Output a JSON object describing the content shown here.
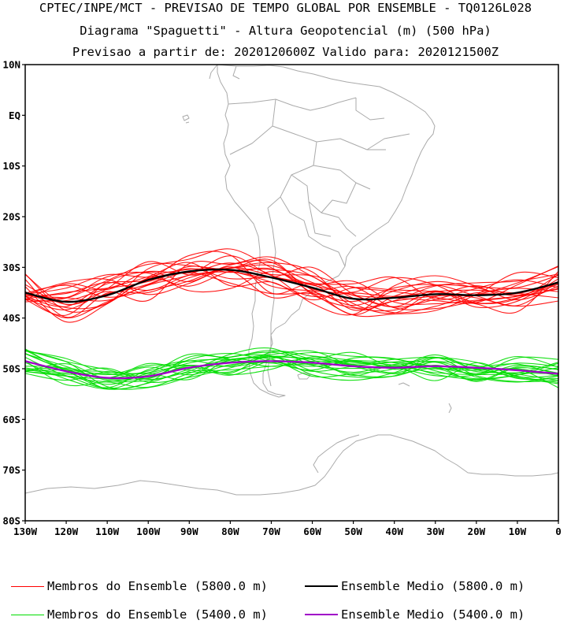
{
  "header": {
    "line1": "CPTEC/INPE/MCT - PREVISAO DE TEMPO GLOBAL POR ENSEMBLE - TQ0126L028",
    "line2": "Diagrama \"Spaguetti\" - Altura Geopotencial (m) (500 hPa)",
    "line3": "Previsao a partir de: 2020120600Z  Valido para: 2020121500Z"
  },
  "map": {
    "lon_range": [
      -130,
      0
    ],
    "lat_range": [
      -80,
      10
    ],
    "lat_ticks": [
      {
        "value": 10,
        "label": "10N"
      },
      {
        "value": 0,
        "label": "EQ"
      },
      {
        "value": -10,
        "label": "10S"
      },
      {
        "value": -20,
        "label": "20S"
      },
      {
        "value": -30,
        "label": "30S"
      },
      {
        "value": -40,
        "label": "40S"
      },
      {
        "value": -50,
        "label": "50S"
      },
      {
        "value": -60,
        "label": "60S"
      },
      {
        "value": -70,
        "label": "70S"
      },
      {
        "value": -80,
        "label": "80S"
      }
    ],
    "lon_ticks": [
      {
        "value": -130,
        "label": "130W"
      },
      {
        "value": -120,
        "label": "120W"
      },
      {
        "value": -110,
        "label": "110W"
      },
      {
        "value": -100,
        "label": "100W"
      },
      {
        "value": -90,
        "label": "90W"
      },
      {
        "value": -80,
        "label": "80W"
      },
      {
        "value": -70,
        "label": "70W"
      },
      {
        "value": -60,
        "label": "60W"
      },
      {
        "value": -50,
        "label": "50W"
      },
      {
        "value": -40,
        "label": "40W"
      },
      {
        "value": -30,
        "label": "30W"
      },
      {
        "value": -20,
        "label": "20W"
      },
      {
        "value": -10,
        "label": "10W"
      },
      {
        "value": 0,
        "label": "0"
      }
    ],
    "coast_color": "#aaaaaa"
  },
  "contours": {
    "lon": [
      -130,
      -120,
      -110,
      -100,
      -90,
      -80,
      -70,
      -60,
      -50,
      -40,
      -30,
      -20,
      -10,
      0
    ],
    "mean_5800": [
      -35.0,
      -36.8,
      -35.5,
      -32.5,
      -30.8,
      -30.5,
      -32.0,
      -34.0,
      -36.2,
      -36.0,
      -35.3,
      -35.5,
      -35.0,
      -33.0
    ],
    "mean_5400": [
      -48.5,
      -50.5,
      -51.8,
      -51.5,
      -49.8,
      -48.8,
      -48.5,
      -48.8,
      -49.5,
      -49.8,
      -49.5,
      -49.8,
      -50.3,
      -51.0
    ],
    "members_5800_count": 20,
    "members_5400_count": 20
  },
  "legend": {
    "items": [
      {
        "label": "Membros do Ensemble (5800.0 m)",
        "color": "#ff0000",
        "icon": "thin-line"
      },
      {
        "label": "Ensemble Medio (5800.0 m)",
        "color": "#000000",
        "icon": "thick-line"
      },
      {
        "label": "Membros do Ensemble (5400.0 m)",
        "color": "#00dd00",
        "icon": "thin-line"
      },
      {
        "label": "Ensemble Medio (5400.0 m)",
        "color": "#a000c8",
        "icon": "thick-line"
      }
    ]
  }
}
